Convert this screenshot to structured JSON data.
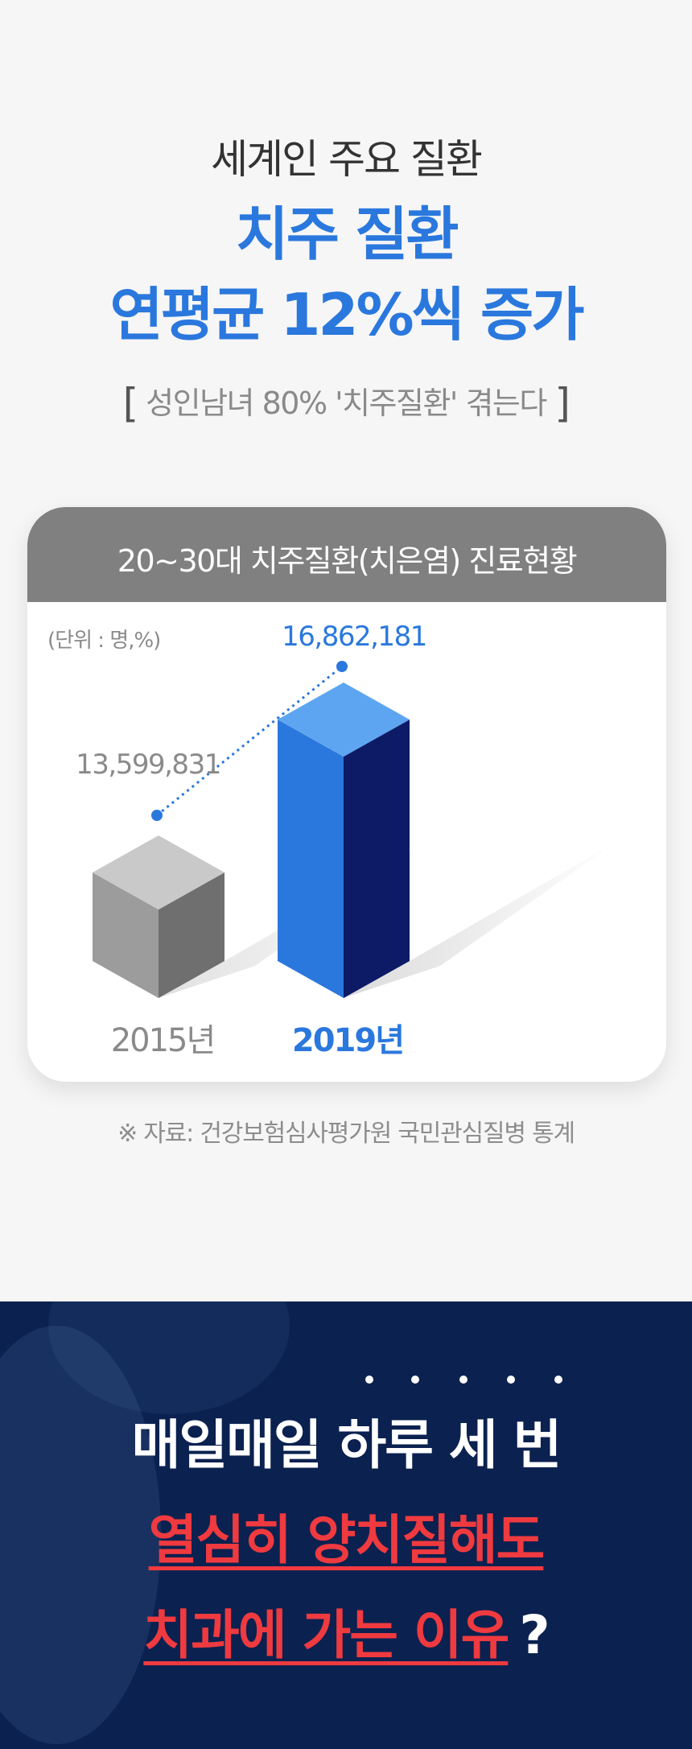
{
  "headline": {
    "line1": "세계인 주요 질환",
    "line2": "치주 질환",
    "line3": "연평균 12%씩 증가",
    "sub_open": "[",
    "sub_text": "성인남녀 80% '치주질환' 겪는다",
    "sub_close": "]"
  },
  "card": {
    "title": "20~30대 치주질환(치은염) 진료현황",
    "unit": "(단위 : 명,%)"
  },
  "chart_data": {
    "type": "bar",
    "title": "20~30대 치주질환(치은염) 진료현황",
    "categories": [
      "2015년",
      "2019년"
    ],
    "values": [
      13599831,
      16862181
    ],
    "value_labels": [
      "13,599,831",
      "16,862,181"
    ],
    "series": [
      {
        "values": [
          13599831,
          16862181
        ]
      }
    ],
    "ylabel": "",
    "xlabel": "",
    "colors": {
      "2015년": "#9a9a9a",
      "2019年": "#2a78dd"
    },
    "trend_line": true
  },
  "source": "※ 자료: 건강보험심사평가원 국민관심질병 통계",
  "banner": {
    "line1": "매일매일 하루 세 번",
    "line2": "열심히 양치질해도",
    "line3": "치과에 가는 이유",
    "question_mark": "?"
  },
  "colors": {
    "accent_blue": "#2a78dd",
    "accent_red": "#ef3a3f",
    "banner_bg": "#0b2150",
    "card_header": "#808080"
  }
}
